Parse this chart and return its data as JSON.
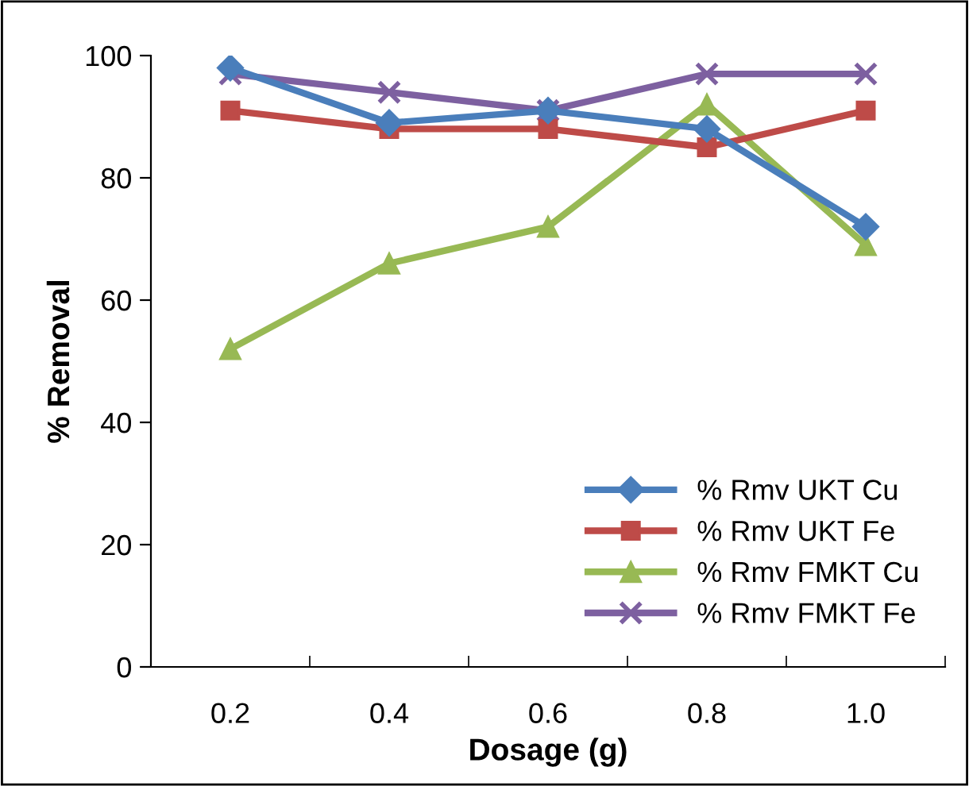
{
  "chart_data": {
    "type": "line",
    "xlabel": "Dosage (g)",
    "ylabel": "% Removal",
    "categories": [
      "0.2",
      "0.4",
      "0.6",
      "0.8",
      "1.0"
    ],
    "ylim": [
      0,
      100
    ],
    "yticks": [
      0,
      20,
      40,
      60,
      80,
      100
    ],
    "grid": false,
    "legend": "bottom right",
    "series": [
      {
        "name": "% Rmv UKT Cu",
        "color": "#4a7ebb",
        "marker": "diamond",
        "values": [
          98,
          89,
          91,
          88,
          72
        ]
      },
      {
        "name": "% Rmv UKT Fe",
        "color": "#be4b48",
        "marker": "square",
        "values": [
          91,
          88,
          88,
          85,
          91
        ]
      },
      {
        "name": "% Rmv FMKT Cu",
        "color": "#98b954",
        "marker": "triangle",
        "values": [
          52,
          66,
          72,
          92,
          69
        ]
      },
      {
        "name": "% Rmv FMKT Fe",
        "color": "#7d60a0",
        "marker": "cross",
        "values": [
          97,
          94,
          91,
          97,
          97
        ]
      }
    ]
  }
}
